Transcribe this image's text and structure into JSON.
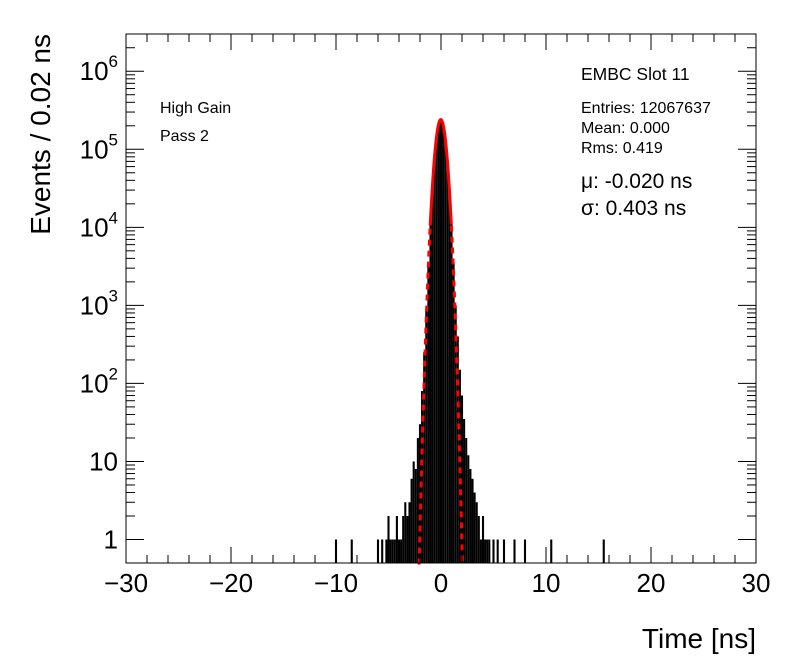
{
  "chart_data": {
    "type": "histogram",
    "xlabel": "Time [ns]",
    "ylabel": "Events / 0.02 ns",
    "xlim": [
      -30,
      30
    ],
    "ylim": [
      0.5,
      3000000
    ],
    "yscale": "log",
    "grid": false,
    "x_ticks": [
      {
        "value": -30,
        "label": "−30"
      },
      {
        "value": -20,
        "label": "−20"
      },
      {
        "value": -10,
        "label": "−10"
      },
      {
        "value": 0,
        "label": "0"
      },
      {
        "value": 10,
        "label": "10"
      },
      {
        "value": 20,
        "label": "20"
      },
      {
        "value": 30,
        "label": "30"
      }
    ],
    "y_ticks": [
      {
        "value": 1,
        "base": "1",
        "exp": ""
      },
      {
        "value": 10,
        "base": "10",
        "exp": ""
      },
      {
        "value": 100,
        "base": "10",
        "exp": "2"
      },
      {
        "value": 1000,
        "base": "10",
        "exp": "3"
      },
      {
        "value": 10000,
        "base": "10",
        "exp": "4"
      },
      {
        "value": 100000,
        "base": "10",
        "exp": "5"
      },
      {
        "value": 1000000,
        "base": "10",
        "exp": "6"
      }
    ],
    "series": [
      {
        "style": "histogram-black",
        "color": "#000000",
        "points": [
          [
            -10,
            1
          ],
          [
            -8.5,
            1
          ],
          [
            -6,
            1
          ],
          [
            -5.6,
            1
          ],
          [
            -5.2,
            1
          ],
          [
            -5.0,
            2
          ],
          [
            -4.8,
            1
          ],
          [
            -4.6,
            1
          ],
          [
            -4.4,
            1
          ],
          [
            -4.2,
            2
          ],
          [
            -4.0,
            1
          ],
          [
            -3.8,
            1
          ],
          [
            -3.6,
            2
          ],
          [
            -3.4,
            3
          ],
          [
            -3.2,
            2
          ],
          [
            -3.0,
            3
          ],
          [
            -2.8,
            6
          ],
          [
            -2.6,
            10
          ],
          [
            -2.4,
            8
          ],
          [
            -2.2,
            20
          ],
          [
            -2.0,
            30
          ],
          [
            -1.8,
            80
          ],
          [
            -1.6,
            250
          ],
          [
            -1.4,
            900
          ],
          [
            -1.2,
            3500
          ],
          [
            -1.0,
            11000
          ],
          [
            -0.8,
            35000
          ],
          [
            -0.6,
            85000
          ],
          [
            -0.4,
            160000
          ],
          [
            -0.2,
            215000
          ],
          [
            0.0,
            240000
          ],
          [
            0.2,
            215000
          ],
          [
            0.4,
            160000
          ],
          [
            0.6,
            85000
          ],
          [
            0.8,
            35000
          ],
          [
            1.0,
            11000
          ],
          [
            1.2,
            3500
          ],
          [
            1.4,
            1000
          ],
          [
            1.6,
            400
          ],
          [
            1.8,
            150
          ],
          [
            2.0,
            70
          ],
          [
            2.2,
            35
          ],
          [
            2.4,
            20
          ],
          [
            2.6,
            12
          ],
          [
            2.8,
            8
          ],
          [
            3.0,
            6
          ],
          [
            3.2,
            4
          ],
          [
            3.4,
            3
          ],
          [
            3.6,
            2
          ],
          [
            3.8,
            1
          ],
          [
            4.0,
            2
          ],
          [
            4.2,
            1
          ],
          [
            4.4,
            1
          ],
          [
            4.6,
            1
          ],
          [
            5.0,
            1
          ],
          [
            5.4,
            1
          ],
          [
            6.0,
            1
          ],
          [
            7.0,
            1
          ],
          [
            8.0,
            1
          ],
          [
            10.5,
            1
          ],
          [
            15.5,
            1
          ]
        ]
      },
      {
        "style": "gaussian-fit-red",
        "color": "#ff0000",
        "mu": -0.02,
        "sigma": 0.403,
        "amplitude": 240000
      }
    ],
    "annotations": {
      "gain": "High Gain",
      "pass": "Pass 2",
      "slot": "EMBC Slot 11",
      "entries": "Entries: 12067637",
      "mean": "Mean: 0.000",
      "rms": "Rms: 0.419",
      "mu": "μ: -0.020 ns",
      "sigma": "σ: 0.403 ns"
    }
  }
}
